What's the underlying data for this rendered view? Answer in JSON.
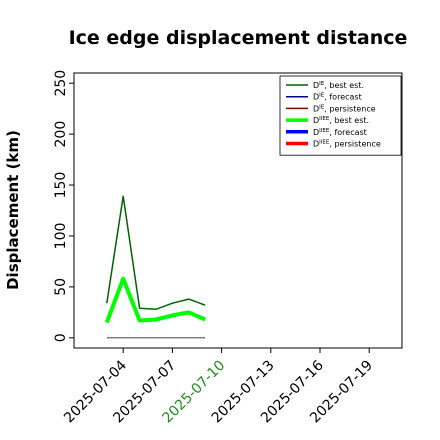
{
  "chart_data": {
    "type": "line",
    "title": "Ice edge displacement distance",
    "xlabel": "",
    "ylabel": "Displacement (km)",
    "xlim": [
      "2025-07-01",
      "2025-07-21"
    ],
    "ylim": [
      -10,
      260
    ],
    "yticks": [
      0,
      50,
      100,
      150,
      200,
      250
    ],
    "xticks": [
      "2025-07-04",
      "2025-07-07",
      "2025-07-10",
      "2025-07-13",
      "2025-07-16",
      "2025-07-19"
    ],
    "highlight_xtick": "2025-07-10",
    "highlight_color": "#228B22",
    "legend_position": "upper right",
    "grid": false,
    "series": [
      {
        "name": "D^IE, best est.",
        "color": "#006400",
        "linewidth": 1.5,
        "x": [
          "2025-07-03",
          "2025-07-04",
          "2025-07-05",
          "2025-07-06",
          "2025-07-07",
          "2025-07-08",
          "2025-07-09"
        ],
        "y": [
          34,
          139,
          29,
          28,
          34,
          38,
          32
        ]
      },
      {
        "name": "D^IE, forecast",
        "color": "#00008B",
        "linewidth": 1.5,
        "x": [],
        "y": []
      },
      {
        "name": "D^IE, persistence",
        "color": "#8B0000",
        "linewidth": 1.5,
        "x": [],
        "y": []
      },
      {
        "name": "D^IIEE, best est.",
        "color": "#00FF00",
        "linewidth": 4,
        "x": [
          "2025-07-03",
          "2025-07-04",
          "2025-07-05",
          "2025-07-06",
          "2025-07-07",
          "2025-07-08",
          "2025-07-09"
        ],
        "y": [
          15,
          58,
          17,
          18,
          22,
          25,
          18
        ]
      },
      {
        "name": "D^IIEE, forecast",
        "color": "#0000FF",
        "linewidth": 4,
        "x": [],
        "y": []
      },
      {
        "name": "D^IIEE, persistence",
        "color": "#FF0000",
        "linewidth": 4,
        "x": [],
        "y": []
      },
      {
        "name": "",
        "color": "#808080",
        "linewidth": 1.5,
        "x": [
          "2025-07-03",
          "2025-07-09"
        ],
        "y": [
          0,
          0
        ]
      }
    ],
    "legend": [
      {
        "label": "D",
        "sup": "IE",
        "suffix": ", best est.",
        "color": "#006400",
        "thick": false
      },
      {
        "label": "D",
        "sup": "IE",
        "suffix": ", forecast",
        "color": "#00008B",
        "thick": false
      },
      {
        "label": "D",
        "sup": "IE",
        "suffix": ", persistence",
        "color": "#8B0000",
        "thick": false
      },
      {
        "label": "D",
        "sup": "IIEE",
        "suffix": ", best est.",
        "color": "#00FF00",
        "thick": true
      },
      {
        "label": "D",
        "sup": "IIEE",
        "suffix": ", forecast",
        "color": "#0000FF",
        "thick": true
      },
      {
        "label": "D",
        "sup": "IIEE",
        "suffix": ", persistence",
        "color": "#FF0000",
        "thick": true
      }
    ]
  }
}
